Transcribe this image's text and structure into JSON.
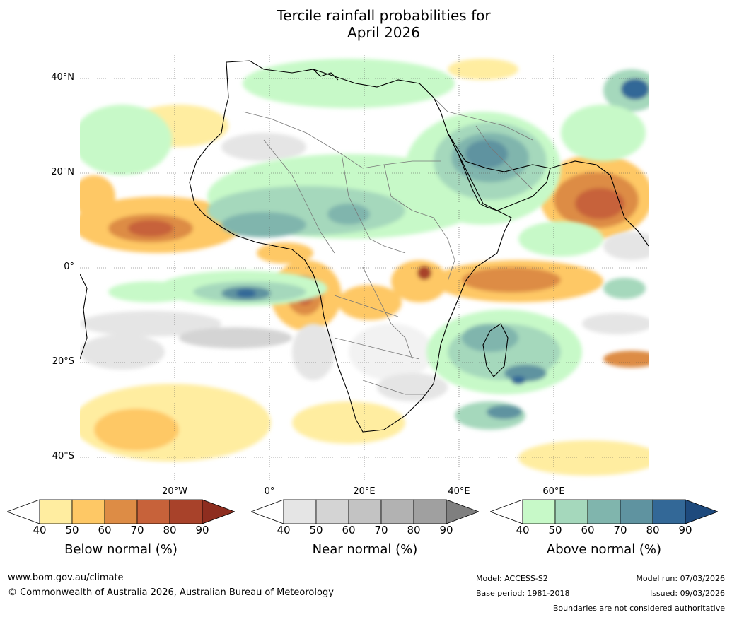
{
  "title": {
    "line1": "Tercile rainfall probabilities for",
    "line2": "April 2026"
  },
  "map": {
    "lat_labels": [
      "40°N",
      "20°N",
      "0°",
      "20°S",
      "40°S"
    ],
    "lon_labels": [
      "20°W",
      "0°",
      "20°E",
      "40°E",
      "60°E"
    ],
    "region": "Africa"
  },
  "colorbars": [
    {
      "id": "below",
      "title": "Below normal (%)",
      "ticks": [
        "40",
        "50",
        "60",
        "70",
        "80",
        "90"
      ],
      "colors": [
        "#ffeda0",
        "#fec865",
        "#dd8c45",
        "#c7623a",
        "#a8422a"
      ],
      "over_color": "#8e2d1f"
    },
    {
      "id": "near",
      "title": "Near normal (%)",
      "ticks": [
        "40",
        "50",
        "60",
        "70",
        "80",
        "90"
      ],
      "colors": [
        "#e5e5e5",
        "#d4d4d4",
        "#c3c3c3",
        "#b2b2b2",
        "#a0a0a0"
      ],
      "over_color": "#7f7f7f"
    },
    {
      "id": "above",
      "title": "Above normal (%)",
      "ticks": [
        "40",
        "50",
        "60",
        "70",
        "80",
        "90"
      ],
      "colors": [
        "#c7f9c8",
        "#a5d8bc",
        "#80b5ad",
        "#5f93a0",
        "#336897"
      ],
      "over_color": "#1e4a7d"
    }
  ],
  "footer": {
    "url": "www.bom.gov.au/climate",
    "copyright": "© Commonwealth of Australia 2026, Australian Bureau of Meteorology",
    "model": "Model: ACCESS-S2",
    "base_period": "Base period: 1981-2018",
    "model_run": "Model run: 07/03/2026",
    "issued": "Issued: 09/03/2026",
    "disclaimer": "Boundaries are not considered authoritative"
  }
}
